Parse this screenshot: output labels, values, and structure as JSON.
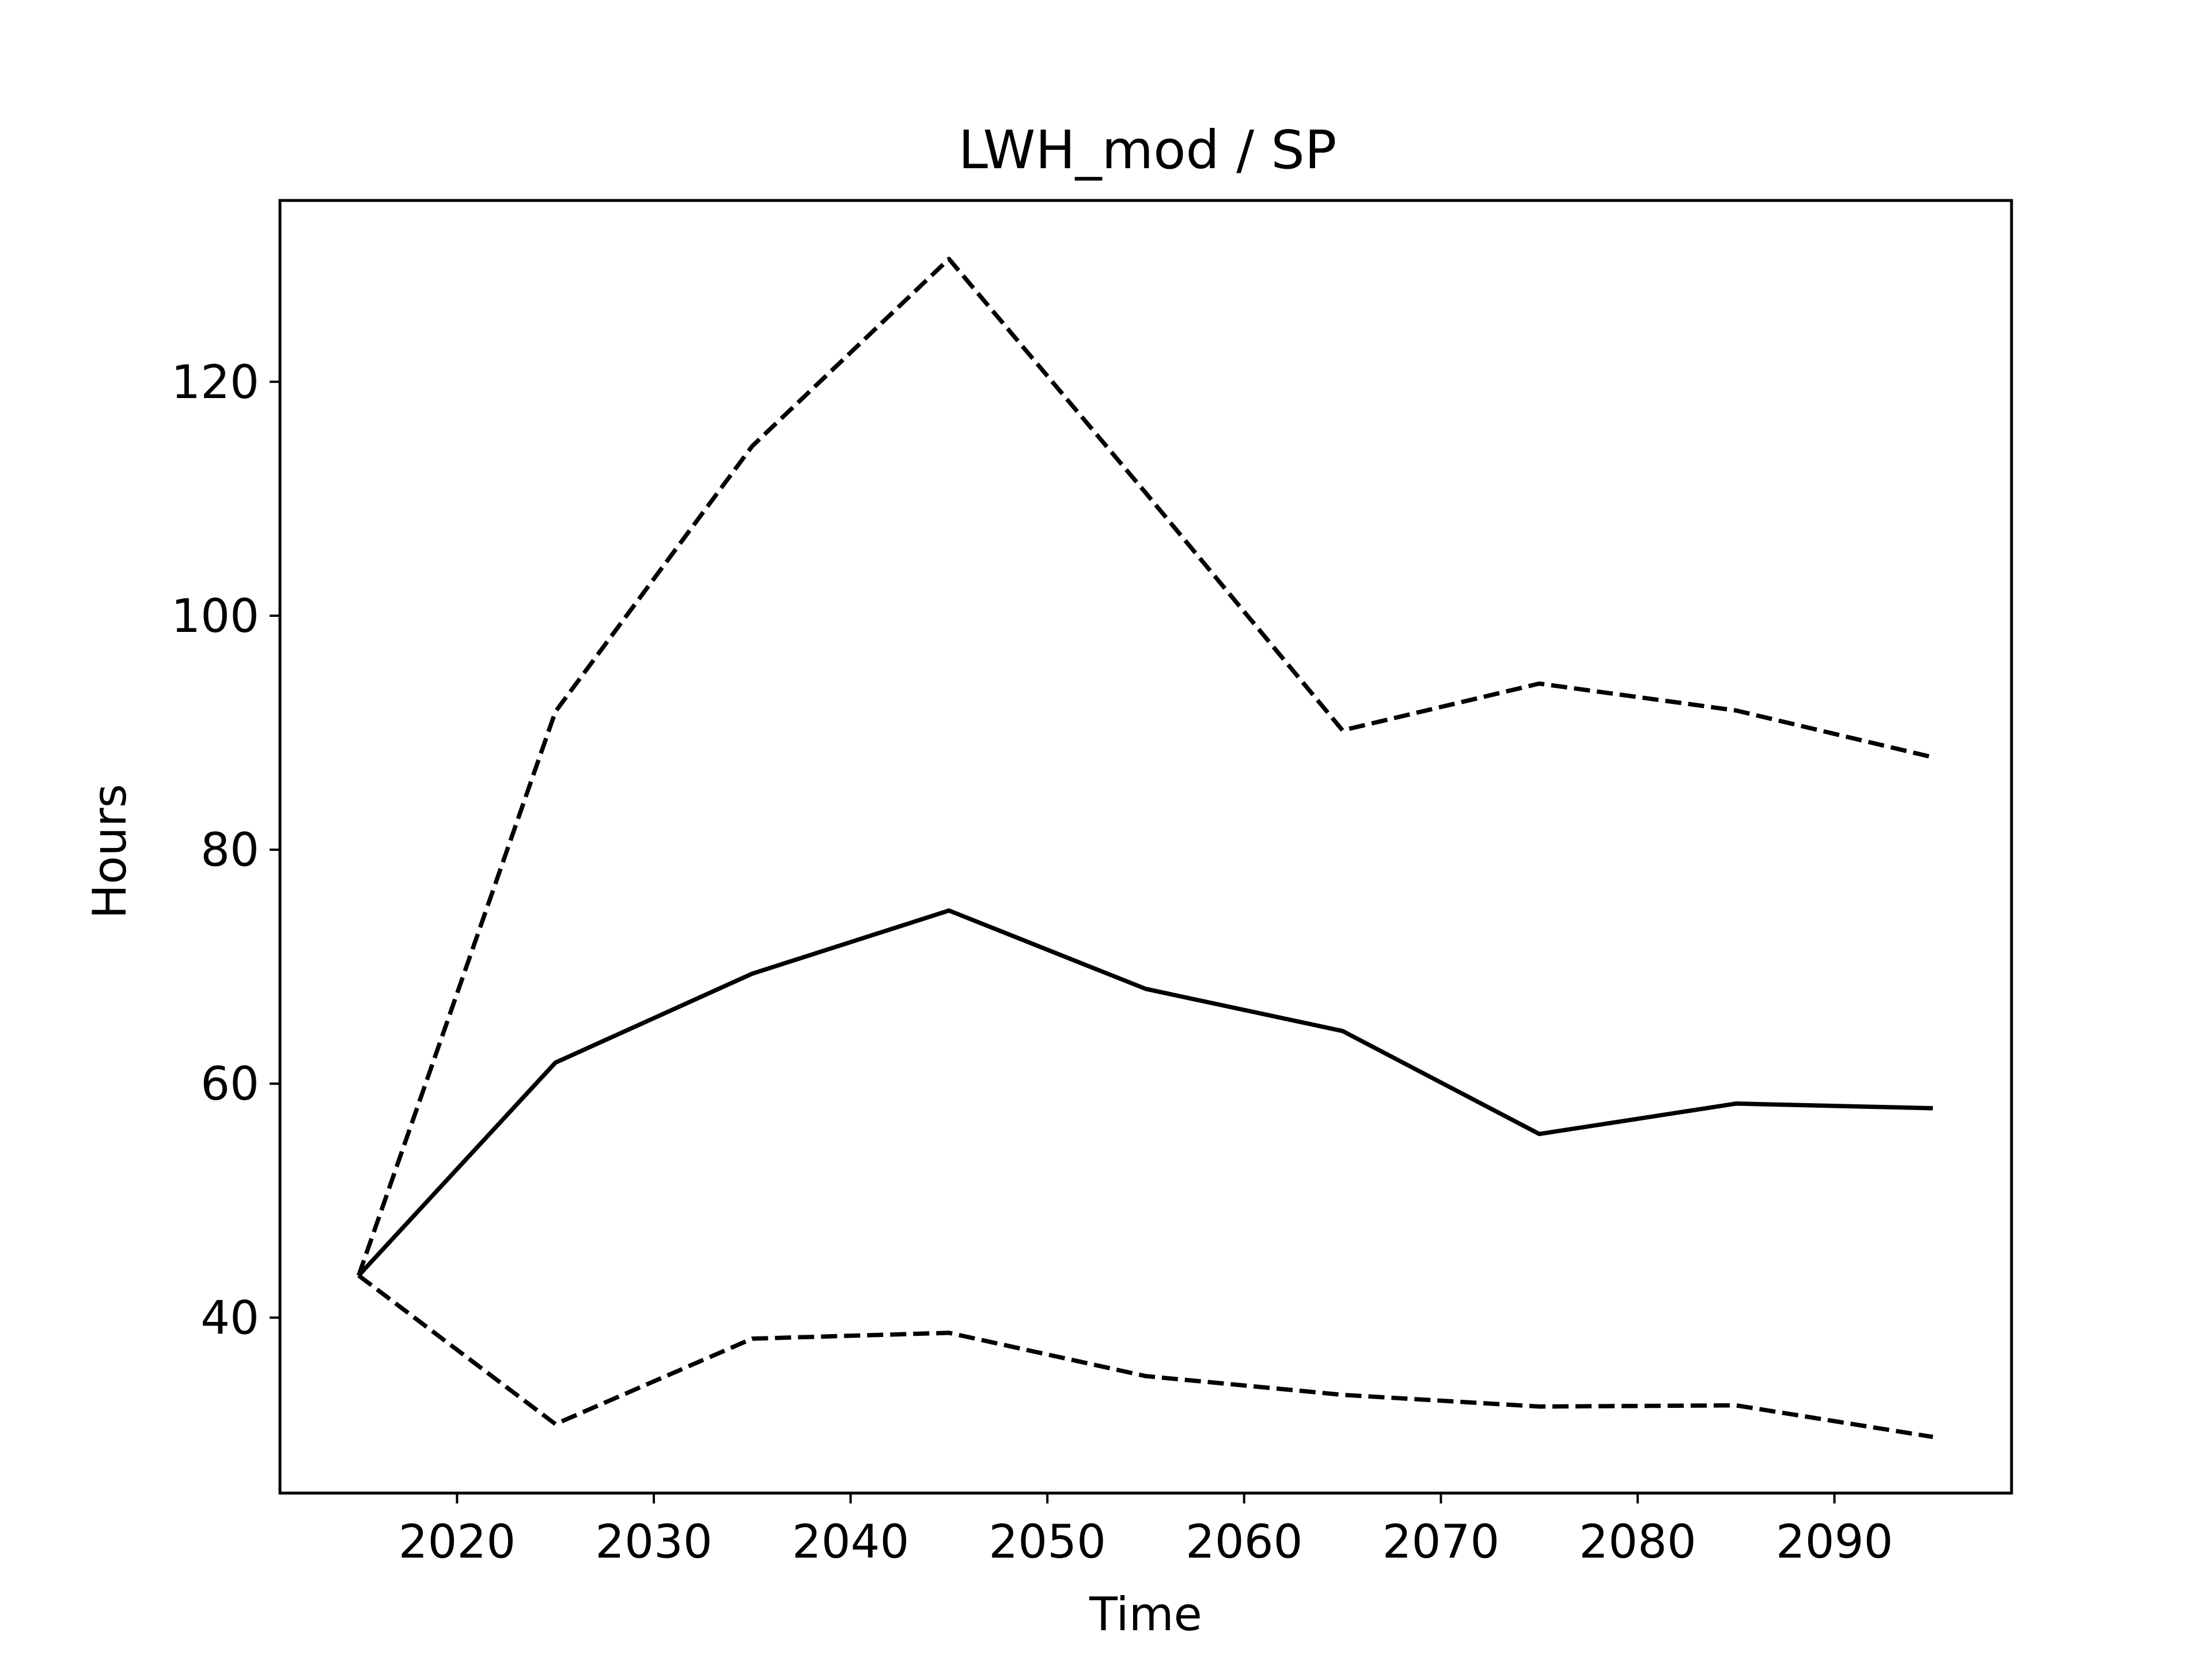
{
  "chart_data": {
    "type": "line",
    "title": "LWH_mod / SP",
    "xlabel": "Time",
    "ylabel": "Hours",
    "xlim": [
      2011,
      2099
    ],
    "ylim": [
      25,
      135.5
    ],
    "xticks": [
      2020,
      2030,
      2040,
      2050,
      2060,
      2070,
      2080,
      2090
    ],
    "yticks": [
      40,
      60,
      80,
      100,
      120
    ],
    "grid": false,
    "legend": "none",
    "x": [
      2015,
      2025,
      2035,
      2045,
      2055,
      2065,
      2075,
      2085,
      2095
    ],
    "series": [
      {
        "style": "dashed",
        "color": "#000000",
        "values": [
          43.6,
          91.8,
          114.5,
          130.5,
          110.5,
          90.2,
          94.2,
          91.9,
          87.9
        ]
      },
      {
        "style": "solid",
        "color": "#000000",
        "values": [
          43.6,
          61.8,
          69.4,
          74.8,
          68.1,
          64.5,
          55.7,
          58.3,
          57.9
        ]
      },
      {
        "style": "dashed",
        "color": "#000000",
        "values": [
          43.6,
          30.9,
          38.2,
          38.7,
          35.0,
          33.4,
          32.4,
          32.5,
          29.8
        ]
      }
    ]
  }
}
